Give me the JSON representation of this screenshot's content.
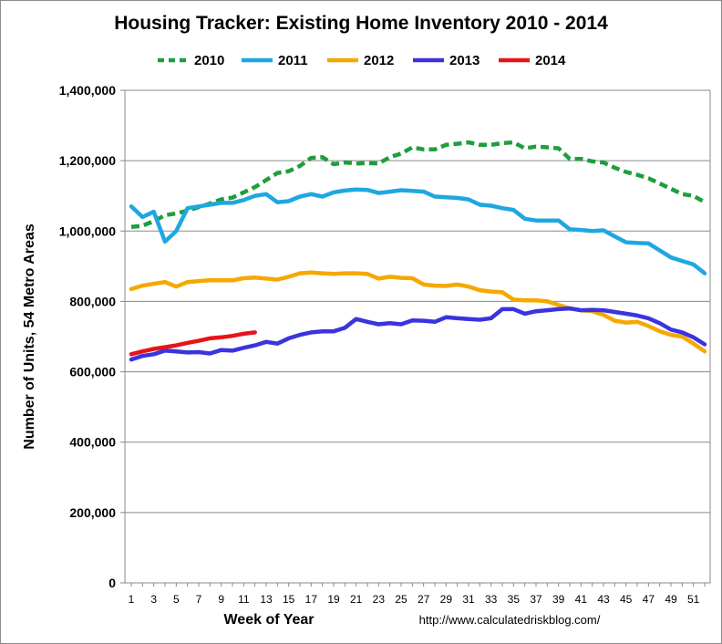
{
  "chart_data": {
    "type": "line",
    "title": "Housing Tracker: Existing Home Inventory 2010 - 2014",
    "xlabel": "Week of Year",
    "ylabel": "Number of Units, 54 Metro Areas",
    "source": "http://www.calculatedriskblog.com/",
    "ylim": [
      0,
      1400000
    ],
    "xlim": [
      1,
      52
    ],
    "yticks": [
      "0",
      "200,000",
      "400,000",
      "600,000",
      "800,000",
      "1,000,000",
      "1,200,000",
      "1,400,000"
    ],
    "ytick_values": [
      0,
      200000,
      400000,
      600000,
      800000,
      1000000,
      1200000,
      1400000
    ],
    "xticks": [
      "1",
      "3",
      "5",
      "7",
      "9",
      "11",
      "13",
      "15",
      "17",
      "19",
      "21",
      "23",
      "25",
      "27",
      "29",
      "31",
      "33",
      "35",
      "37",
      "39",
      "41",
      "43",
      "45",
      "47",
      "49",
      "51"
    ],
    "grid": "horizontal",
    "legend_position": "top",
    "series": [
      {
        "name": "2010",
        "color": "#1e9e3c",
        "dashed": true,
        "values": [
          1012000,
          1015000,
          1028000,
          1045000,
          1050000,
          1058000,
          1068000,
          1078000,
          1090000,
          1095000,
          1110000,
          1125000,
          1145000,
          1165000,
          1170000,
          1185000,
          1208000,
          1210000,
          1190000,
          1195000,
          1192000,
          1193000,
          1192000,
          1210000,
          1220000,
          1238000,
          1232000,
          1232000,
          1245000,
          1248000,
          1252000,
          1245000,
          1245000,
          1250000,
          1252000,
          1235000,
          1240000,
          1238000,
          1235000,
          1205000,
          1205000,
          1198000,
          1195000,
          1180000,
          1168000,
          1160000,
          1150000,
          1135000,
          1120000,
          1105000,
          1100000,
          1082000
        ]
      },
      {
        "name": "2011",
        "color": "#1ea7e1",
        "dashed": false,
        "values": [
          1070000,
          1040000,
          1055000,
          970000,
          1000000,
          1065000,
          1070000,
          1075000,
          1080000,
          1080000,
          1088000,
          1100000,
          1105000,
          1082000,
          1085000,
          1098000,
          1105000,
          1098000,
          1110000,
          1115000,
          1118000,
          1117000,
          1108000,
          1112000,
          1116000,
          1114000,
          1112000,
          1098000,
          1096000,
          1094000,
          1090000,
          1075000,
          1072000,
          1065000,
          1060000,
          1035000,
          1030000,
          1030000,
          1030000,
          1005000,
          1003000,
          1000000,
          1002000,
          985000,
          968000,
          966000,
          965000,
          945000,
          925000,
          915000,
          905000,
          880000
        ]
      },
      {
        "name": "2012",
        "color": "#f5a800",
        "dashed": false,
        "values": [
          835000,
          845000,
          850000,
          855000,
          842000,
          855000,
          858000,
          860000,
          860000,
          860000,
          866000,
          868000,
          865000,
          862000,
          870000,
          880000,
          882000,
          880000,
          878000,
          880000,
          880000,
          878000,
          865000,
          870000,
          867000,
          866000,
          848000,
          845000,
          844000,
          848000,
          842000,
          832000,
          828000,
          826000,
          805000,
          803000,
          803000,
          800000,
          790000,
          780000,
          775000,
          772000,
          762000,
          745000,
          740000,
          742000,
          730000,
          715000,
          705000,
          700000,
          680000,
          658000
        ]
      },
      {
        "name": "2013",
        "color": "#3a33e0",
        "dashed": false,
        "values": [
          635000,
          645000,
          650000,
          660000,
          658000,
          655000,
          656000,
          652000,
          662000,
          660000,
          668000,
          675000,
          685000,
          680000,
          695000,
          705000,
          712000,
          715000,
          715000,
          725000,
          750000,
          742000,
          735000,
          738000,
          735000,
          746000,
          745000,
          742000,
          755000,
          752000,
          750000,
          748000,
          752000,
          778000,
          778000,
          765000,
          772000,
          775000,
          778000,
          780000,
          775000,
          776000,
          775000,
          770000,
          765000,
          760000,
          752000,
          738000,
          720000,
          712000,
          698000,
          678000
        ]
      },
      {
        "name": "2014",
        "color": "#e8131a",
        "dashed": false,
        "values": [
          650000,
          658000,
          665000,
          670000,
          675000,
          682000,
          688000,
          695000,
          698000,
          702000,
          708000,
          712000
        ]
      }
    ]
  }
}
